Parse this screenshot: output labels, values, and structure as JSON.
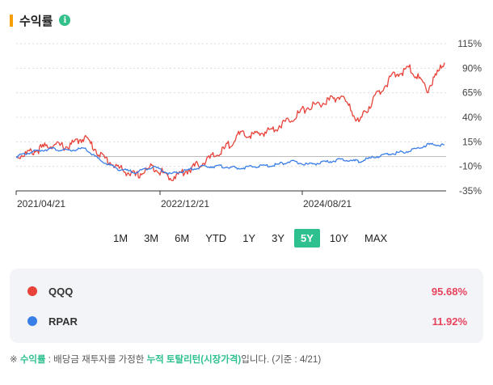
{
  "header": {
    "title": "수익률",
    "info_icon": "info-icon"
  },
  "periods": [
    "1M",
    "3M",
    "6M",
    "YTD",
    "1Y",
    "3Y",
    "5Y",
    "10Y",
    "MAX"
  ],
  "active_period": "5Y",
  "chart_data": {
    "type": "line",
    "y_unit": "%",
    "y_ticks": [
      "115%",
      "90%",
      "65%",
      "40%",
      "15%",
      "-10%",
      "-35%"
    ],
    "ylim": [
      -35,
      115
    ],
    "x_ticks": [
      "2021/04/21",
      "2022/12/21",
      "2024/08/21"
    ],
    "grid": true,
    "series": [
      {
        "name": "QQQ",
        "color": "#e8433a",
        "x": [
          "2021-04",
          "2021-06",
          "2021-08",
          "2021-10",
          "2021-12",
          "2022-02",
          "2022-04",
          "2022-06",
          "2022-08",
          "2022-10",
          "2022-12",
          "2023-02",
          "2023-04",
          "2023-06",
          "2023-08",
          "2023-10",
          "2023-12",
          "2024-02",
          "2024-04",
          "2024-06",
          "2024-08",
          "2024-10",
          "2024-12",
          "2025-02",
          "2025-03",
          "2025-04"
        ],
        "values": [
          0,
          5,
          12,
          10,
          20,
          0,
          -12,
          -20,
          -10,
          -22,
          -14,
          -5,
          5,
          22,
          22,
          28,
          38,
          50,
          55,
          62,
          35,
          62,
          82,
          90,
          68,
          95.68
        ]
      },
      {
        "name": "RPAR",
        "color": "#3a7ee8",
        "x": [
          "2021-04",
          "2021-06",
          "2021-08",
          "2021-10",
          "2021-12",
          "2022-02",
          "2022-04",
          "2022-06",
          "2022-08",
          "2022-10",
          "2022-12",
          "2023-02",
          "2023-04",
          "2023-06",
          "2023-08",
          "2023-10",
          "2023-12",
          "2024-02",
          "2024-04",
          "2024-06",
          "2024-08",
          "2024-10",
          "2024-12",
          "2025-02",
          "2025-03",
          "2025-04"
        ],
        "values": [
          0,
          5,
          8,
          6,
          8,
          -5,
          -13,
          -16,
          -10,
          -18,
          -14,
          -10,
          -10,
          -12,
          -10,
          -9,
          -5,
          -8,
          -6,
          -3,
          -5,
          0,
          3,
          6,
          12,
          11.92
        ]
      }
    ]
  },
  "legend": [
    {
      "name": "QQQ",
      "value": "95.68%",
      "color": "#e8433a"
    },
    {
      "name": "RPAR",
      "value": "11.92%",
      "color": "#3a7ee8"
    }
  ],
  "footnote": {
    "prefix": "※ ",
    "term": "수익률",
    "middle": " : 배당금 재투자를 가정한 ",
    "highlight": "누적 토탈리턴(시장가격)",
    "suffix": "입니다. (기준 : 4/21)"
  }
}
